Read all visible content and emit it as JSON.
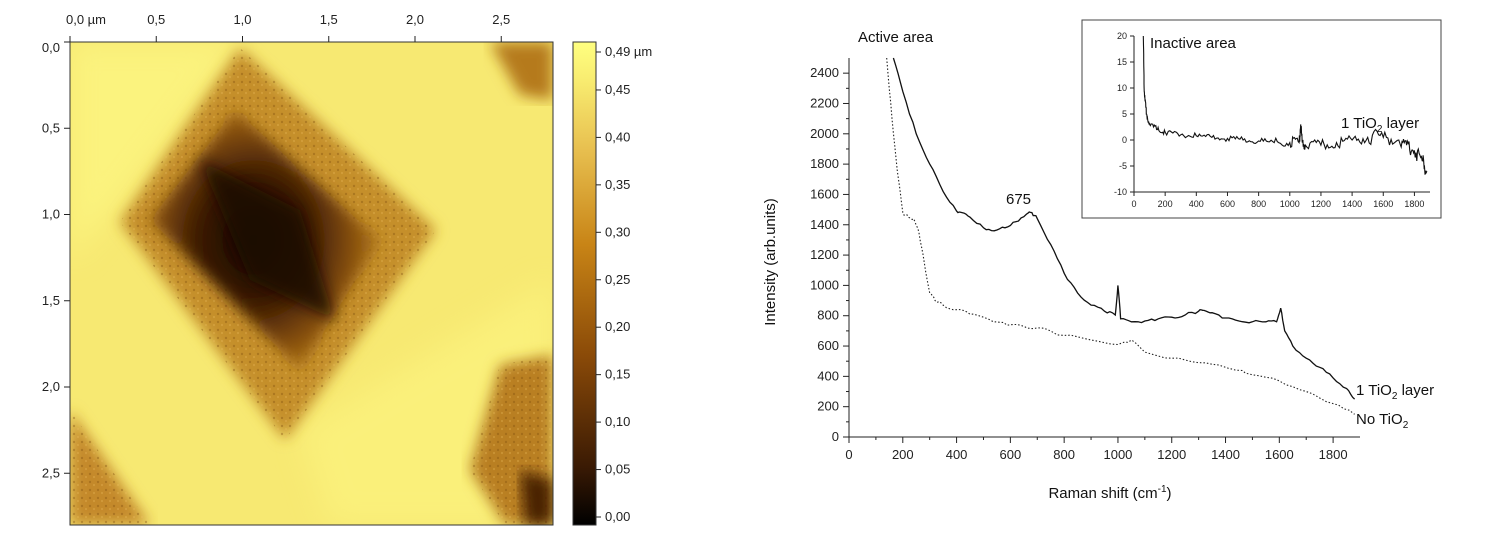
{
  "chart_data": [
    {
      "type": "heatmap",
      "title": "",
      "x_ticks": [
        "0,0 µm",
        "0,5",
        "1,0",
        "1,5",
        "2,0",
        "2,5"
      ],
      "x_tick_values": [
        0.0,
        0.5,
        1.0,
        1.5,
        2.0,
        2.5
      ],
      "y_ticks": [
        "0,0",
        "0,5",
        "1,0",
        "1,5",
        "2,0",
        "2,5"
      ],
      "y_tick_values": [
        0.0,
        0.5,
        1.0,
        1.5,
        2.0,
        2.5
      ],
      "xlim": [
        0,
        2.8
      ],
      "ylim": [
        0,
        2.8
      ],
      "colorbar": {
        "labels": [
          "0,49 µm",
          "0,45",
          "0,40",
          "0,35",
          "0,30",
          "0,25",
          "0,20",
          "0,15",
          "0,10",
          "0,05",
          "0,00"
        ],
        "values": [
          0.49,
          0.45,
          0.4,
          0.35,
          0.3,
          0.25,
          0.2,
          0.15,
          0.1,
          0.05,
          0.0
        ],
        "range": [
          0.0,
          0.49
        ],
        "colors": [
          "#000000",
          "#3a1a04",
          "#8a4a08",
          "#c88416",
          "#e8c050",
          "#f8ec70",
          "#ffff80"
        ]
      },
      "surface_colors": {
        "plateau": "#f7e972",
        "wall": "#c58f2c",
        "pit_bottom": "#140600"
      }
    },
    {
      "type": "line",
      "xlabel": "Raman shift (cm",
      "xlabel_sup": "-1",
      "xlabel_end": ")",
      "ylabel": "Intensity (arb.units)",
      "xlim": [
        0,
        1900
      ],
      "ylim": [
        0,
        2500
      ],
      "x_ticks": [
        0,
        200,
        400,
        600,
        800,
        1000,
        1200,
        1400,
        1600,
        1800
      ],
      "y_ticks": [
        0,
        200,
        400,
        600,
        800,
        1000,
        1200,
        1400,
        1600,
        1800,
        2000,
        2200,
        2400
      ],
      "annotations": {
        "active": "Active area",
        "peak": "675"
      },
      "series": [
        {
          "name": "1 TiO2 layer",
          "label_main": "1 TiO",
          "label_sub": "2",
          "label_end": " layer",
          "style": "solid",
          "x": [
            165,
            200,
            250,
            300,
            350,
            400,
            420,
            450,
            500,
            540,
            580,
            620,
            660,
            680,
            700,
            750,
            800,
            850,
            900,
            950,
            990,
            1000,
            1010,
            1050,
            1100,
            1150,
            1200,
            1250,
            1300,
            1320,
            1350,
            1400,
            1450,
            1500,
            1550,
            1590,
            1605,
            1620,
            1650,
            1700,
            1750,
            1800,
            1850,
            1880
          ],
          "y": [
            2500,
            2280,
            2000,
            1800,
            1620,
            1490,
            1480,
            1450,
            1380,
            1360,
            1380,
            1420,
            1470,
            1480,
            1440,
            1270,
            1080,
            950,
            870,
            830,
            805,
            1000,
            780,
            760,
            765,
            780,
            790,
            805,
            830,
            835,
            820,
            785,
            765,
            760,
            760,
            760,
            850,
            700,
            600,
            520,
            460,
            390,
            320,
            250
          ]
        },
        {
          "name": "No TiO2",
          "label_main": "No TiO",
          "label_sub": "2",
          "label_end": "",
          "style": "dotted",
          "x": [
            140,
            160,
            180,
            200,
            220,
            240,
            260,
            280,
            300,
            320,
            350,
            400,
            450,
            500,
            550,
            600,
            650,
            700,
            800,
            900,
            1000,
            1050,
            1100,
            1200,
            1300,
            1400,
            1450,
            1500,
            1600,
            1700,
            1800,
            1880
          ],
          "y": [
            2500,
            2100,
            1750,
            1480,
            1450,
            1440,
            1350,
            1150,
            950,
            900,
            870,
            840,
            810,
            790,
            760,
            740,
            730,
            720,
            670,
            640,
            610,
            640,
            560,
            520,
            490,
            460,
            440,
            410,
            370,
            300,
            220,
            150
          ]
        }
      ]
    },
    {
      "type": "line",
      "title": "Inactive area",
      "xlim": [
        0,
        1900
      ],
      "ylim": [
        -10,
        20
      ],
      "x_ticks": [
        0,
        200,
        400,
        600,
        800,
        1000,
        1200,
        1400,
        1600,
        1800
      ],
      "y_ticks": [
        -10,
        -5,
        0,
        5,
        10,
        15,
        20
      ],
      "series": [
        {
          "name": "1 TiO2 layer",
          "label_main": "1 TiO",
          "label_sub": "2",
          "label_end": " layer",
          "x": [
            60,
            65,
            70,
            80,
            100,
            150,
            200,
            300,
            400,
            500,
            600,
            700,
            800,
            900,
            1000,
            1060,
            1070,
            1080,
            1100,
            1200,
            1300,
            1400,
            1500,
            1600,
            1700,
            1750,
            1800,
            1850,
            1880
          ],
          "y": [
            20,
            10,
            8,
            5,
            3,
            2,
            1.5,
            1,
            0.8,
            0.5,
            0.3,
            0,
            -0.2,
            -0.5,
            -0.5,
            -0.5,
            3,
            -0.5,
            -1,
            -1,
            -0.5,
            0,
            0.5,
            0.5,
            0,
            -1,
            -2,
            -4,
            -6
          ]
        }
      ]
    }
  ]
}
